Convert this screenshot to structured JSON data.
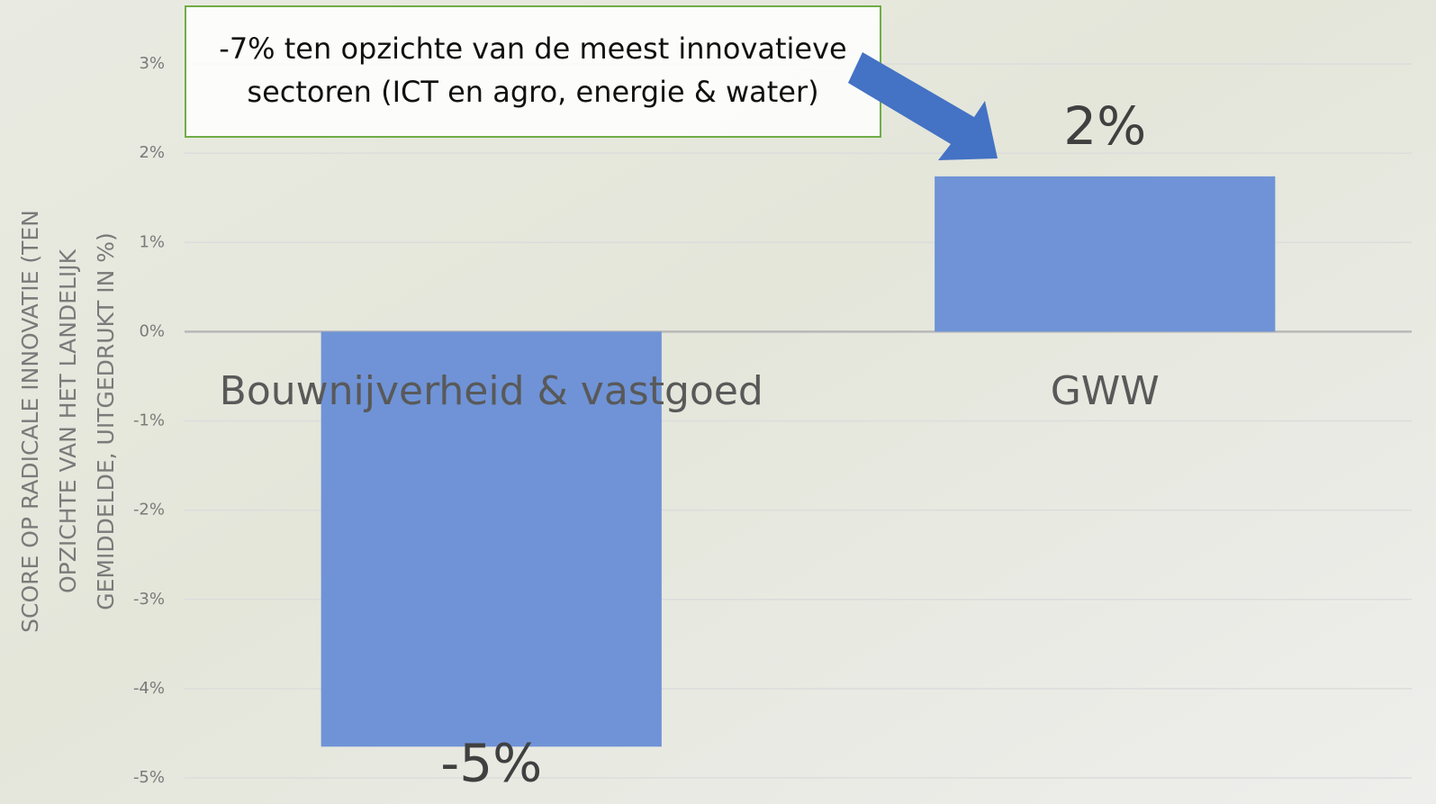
{
  "chart_data": {
    "type": "bar",
    "ylabel": [
      "SCORE OP RADICALE INNOVATIE (TEN",
      "OPZICHTE VAN HET LANDELIJK",
      "GEMIDDELDE, UITGEDRUKT IN %)"
    ],
    "annotation": [
      "-7% ten opzichte van de meest innovatieve",
      "sectoren (ICT en agro, energie & water)"
    ],
    "categories": [
      "Bouwnijverheid & vastgoed",
      "GWW"
    ],
    "values": [
      -4.65,
      1.74
    ],
    "value_labels": [
      "-5%",
      "2%"
    ],
    "color": "#6f93d6",
    "ylim": [
      -5,
      3
    ],
    "yticks": [
      {
        "value": 3,
        "label": "3%"
      },
      {
        "value": 2,
        "label": "2%"
      },
      {
        "value": 1,
        "label": "1%"
      },
      {
        "value": 0,
        "label": "0%"
      },
      {
        "value": -1,
        "label": "-1%"
      },
      {
        "value": -2,
        "label": "-2%"
      },
      {
        "value": -3,
        "label": "-3%"
      },
      {
        "value": -4,
        "label": "-4%"
      },
      {
        "value": -5,
        "label": "-5%"
      }
    ],
    "grid": true
  }
}
